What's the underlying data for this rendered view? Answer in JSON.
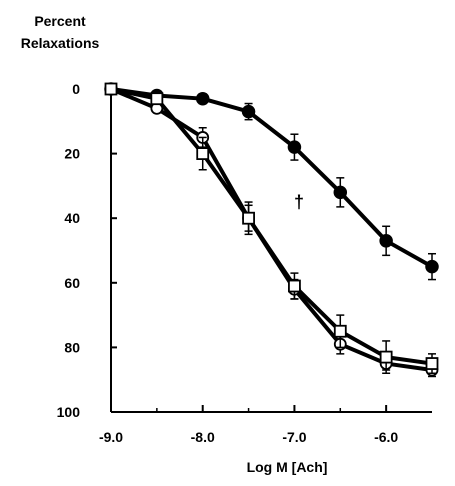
{
  "chart_data": {
    "type": "line",
    "title": "",
    "ylabel_lines": [
      "Percent",
      "Relaxations"
    ],
    "xlabel": "Log M [Ach]",
    "xlim": [
      -9.0,
      -5.5
    ],
    "ylim": [
      0,
      100
    ],
    "y_inverted": true,
    "grid": false,
    "legend": "none",
    "x_ticks": [
      -9.0,
      -8.0,
      -7.0,
      -6.0
    ],
    "x_tick_labels": [
      "-9.0",
      "-8.0",
      "-7.0",
      "-6.0"
    ],
    "y_ticks": [
      0,
      20,
      40,
      60,
      80,
      100
    ],
    "y_tick_labels": [
      "0",
      "20",
      "40",
      "60",
      "80",
      "100"
    ],
    "series": [
      {
        "marker": "filled-circle",
        "x": [
          -9.0,
          -8.5,
          -8.0,
          -7.5,
          -7.0,
          -6.5,
          -6.0,
          -5.5
        ],
        "y": [
          0,
          2,
          3,
          7,
          18,
          32,
          47,
          55
        ],
        "err": [
          0,
          1,
          1.5,
          2.5,
          4,
          4.5,
          4.5,
          4
        ]
      },
      {
        "marker": "open-circle",
        "x": [
          -9.0,
          -8.5,
          -8.0,
          -7.5,
          -7.0,
          -6.5,
          -6.0,
          -5.5
        ],
        "y": [
          0,
          6,
          15,
          40,
          62,
          79,
          85,
          87
        ],
        "err": [
          0,
          1,
          3,
          4,
          3,
          3,
          2,
          2
        ]
      },
      {
        "marker": "open-square",
        "x": [
          -9.0,
          -8.5,
          -8.0,
          -7.5,
          -7.0,
          -6.5,
          -6.0,
          -5.5
        ],
        "y": [
          0,
          3,
          20,
          40,
          61,
          75,
          83,
          85
        ],
        "err": [
          0,
          1,
          5,
          5,
          4,
          5,
          5,
          3
        ]
      }
    ],
    "annotations": [
      {
        "text": "†",
        "x": -6.95,
        "y": 35
      },
      {
        "text": "*",
        "x": -5.2,
        "y": 55
      }
    ]
  }
}
